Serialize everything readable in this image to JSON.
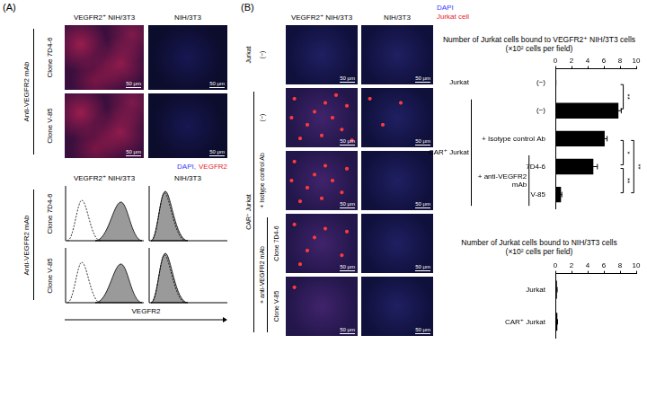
{
  "figure": {
    "A": {
      "label": "(A)",
      "image_columns": [
        "VEGFR2⁺ NIH/3T3",
        "NIH/3T3"
      ],
      "image_row_group": "Anti-VEGFR2 mAb",
      "image_rows": [
        "Clone 7D4-6",
        "Clone V-85"
      ],
      "scale_bar": "50 μm",
      "stain_legend": [
        {
          "text": "DAPI,",
          "color": "#3b3bff"
        },
        {
          "text": "VEGFR2",
          "color": "#e8202a"
        }
      ],
      "flow_columns": [
        "VEGFR2⁺ NIH/3T3",
        "NIH/3T3"
      ],
      "flow_row_group": "Anti-VEGFR2 mAb",
      "flow_rows": [
        "Clone 7D4-6",
        "Clone V-85"
      ],
      "flow_x_label": "VEGFR2"
    },
    "B": {
      "label": "(B)",
      "image_columns": [
        "VEGFR2⁺ NIH/3T3",
        "NIH/3T3"
      ],
      "stain_legend": [
        {
          "text": "DAPI",
          "color": "#3b3bff"
        },
        {
          "text": "Jurkat cell",
          "color": "#e8202a"
        }
      ],
      "row_label_columns": [
        [
          {
            "text": "Jurkat",
            "rows": [
              0
            ]
          },
          {
            "text": "CAR⁺ Jurkat",
            "rows": [
              1,
              2,
              3,
              4
            ]
          }
        ],
        [
          {
            "text": "(−)",
            "rows": [
              0
            ]
          },
          {
            "text": "(−)",
            "rows": [
              1
            ]
          },
          {
            "text": "+ Isotype control Ab",
            "rows": [
              2
            ]
          },
          {
            "text": "+ anti-VEGFR2 mAb",
            "rows": [
              3,
              4
            ]
          }
        ],
        [
          {
            "text": "Clone 7D4-6",
            "rows": [
              3
            ]
          },
          {
            "text": "Clone V-85",
            "rows": [
              4
            ]
          }
        ]
      ],
      "scale_bar": "50 μm"
    }
  },
  "chart_data": [
    {
      "type": "bar",
      "orientation": "horizontal",
      "title": "Number of Jurkat cells bound to VEGFR2⁺ NIH/3T3 cells",
      "subtitle": "(×10² cells per field)",
      "categories": [
        "(−)",
        "(−)",
        "+ Isotype control Ab",
        "7D4-6",
        "V-85"
      ],
      "category_groups": [
        {
          "label": "Jurkat",
          "members": [
            0
          ]
        },
        {
          "label": "CAR⁺ Jurkat",
          "members": [
            1,
            2,
            3,
            4
          ],
          "subgroups": [
            {
              "label": "+ anti-VEGFR2 mAb",
              "members": [
                3,
                4
              ]
            }
          ]
        }
      ],
      "values": [
        0.05,
        7.8,
        6.1,
        4.7,
        0.7
      ],
      "errors": [
        0.02,
        0.35,
        0.3,
        0.5,
        0.1
      ],
      "color": "#000000",
      "xlim": [
        0,
        10
      ],
      "xticks": [
        0,
        2,
        4,
        6,
        8,
        10
      ],
      "grid": false,
      "significance": [
        {
          "between": [
            0,
            1
          ],
          "label": "**"
        },
        {
          "between": [
            2,
            3
          ],
          "label": "*"
        },
        {
          "between": [
            3,
            4
          ],
          "label": "**"
        },
        {
          "between": [
            2,
            4
          ],
          "label": "**"
        }
      ]
    },
    {
      "type": "bar",
      "orientation": "horizontal",
      "title": "Number of Jurkat cells bound to NIH/3T3 cells",
      "subtitle": "(×10² cells per field)",
      "categories": [
        "Jurkat",
        "CAR⁺ Jurkat"
      ],
      "values": [
        0.2,
        0.25
      ],
      "errors": [
        0.03,
        0.03
      ],
      "color": "#000000",
      "xlim": [
        0,
        10
      ],
      "xticks": [
        0,
        2,
        4,
        6,
        8,
        10
      ],
      "grid": false
    }
  ]
}
